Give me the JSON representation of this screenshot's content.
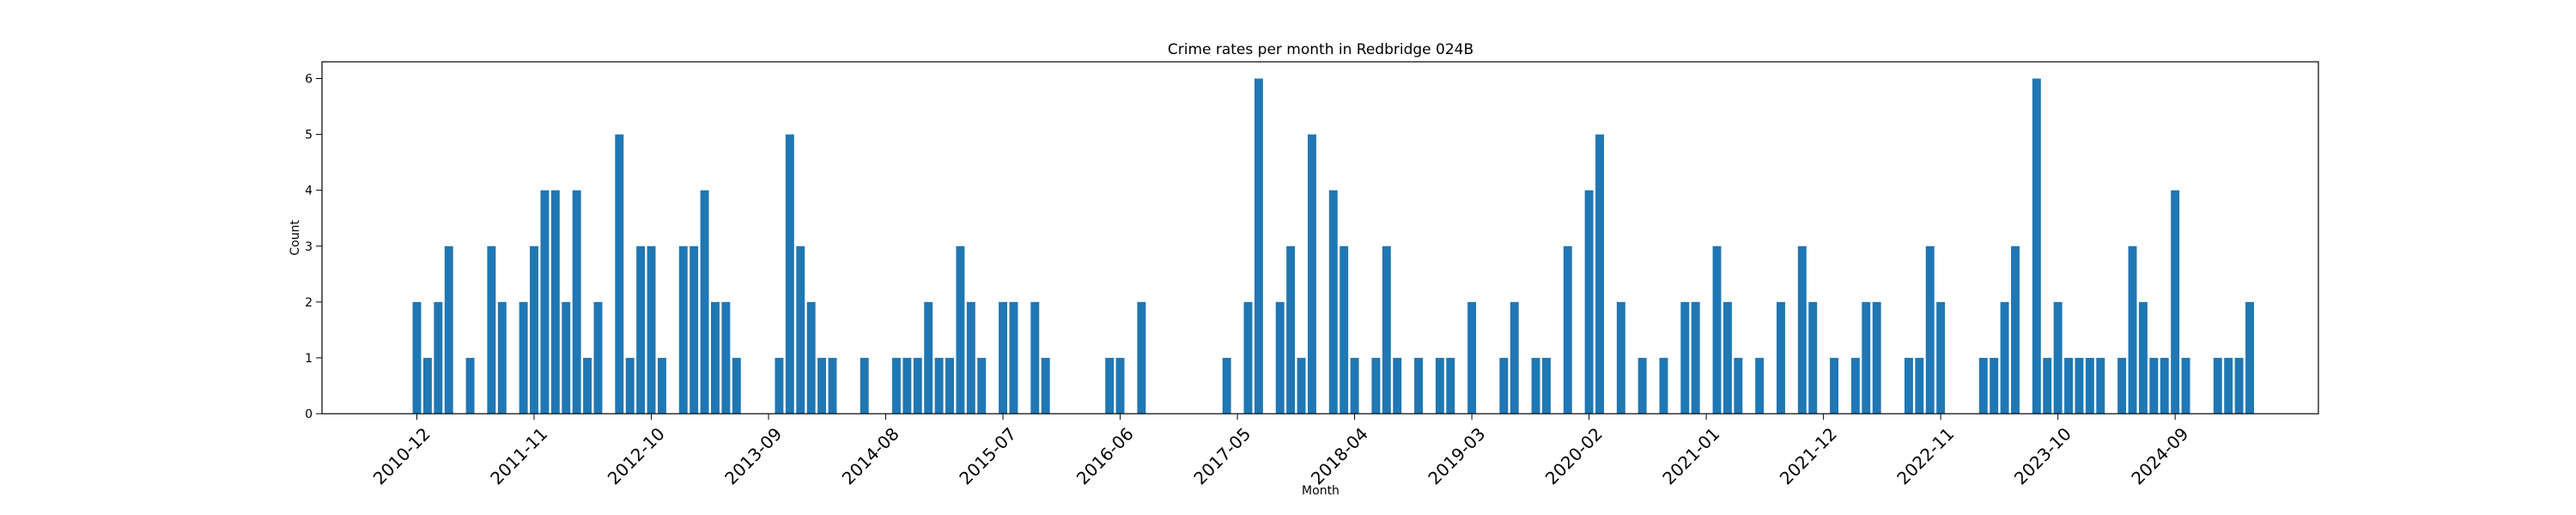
{
  "chart_data": {
    "type": "bar",
    "title": "Crime rates per month in Redbridge 024B",
    "xlabel": "Month",
    "ylabel": "Count",
    "ylim": [
      0,
      6.3
    ],
    "yticks": [
      0,
      1,
      2,
      3,
      4,
      5,
      6
    ],
    "start_month": "2010-12",
    "xtick_labels": [
      "2010-12",
      "2011-11",
      "2012-10",
      "2013-09",
      "2014-08",
      "2015-07",
      "2016-06",
      "2017-05",
      "2018-04",
      "2019-03",
      "2020-02",
      "2021-01",
      "2021-12",
      "2022-11",
      "2023-10",
      "2024-09"
    ],
    "bar_color": "#1f77b4",
    "grid": false,
    "series": [
      {
        "values": [
          2,
          1,
          2,
          3,
          0,
          1,
          0,
          3,
          2,
          0,
          2,
          3,
          4,
          4,
          2,
          4,
          1,
          2,
          0,
          5,
          1,
          3,
          3,
          1,
          0,
          3,
          3,
          4,
          2,
          2,
          1,
          0,
          0,
          0,
          1,
          5,
          3,
          2,
          1,
          1,
          0,
          0,
          1,
          0,
          0,
          1,
          1,
          1,
          2,
          1,
          1,
          3,
          2,
          1,
          0,
          2,
          2,
          0,
          2,
          1,
          0,
          0,
          0,
          0,
          0,
          1,
          1,
          0,
          2,
          0,
          0,
          0,
          0,
          0,
          0,
          0,
          1,
          0,
          2,
          6,
          0,
          2,
          3,
          1,
          5,
          0,
          4,
          3,
          1,
          0,
          1,
          3,
          1,
          0,
          1,
          0,
          1,
          1,
          0,
          2,
          0,
          0,
          1,
          2,
          0,
          1,
          1,
          0,
          3,
          0,
          4,
          5,
          0,
          2,
          0,
          1,
          0,
          1,
          0,
          2,
          2,
          0,
          3,
          2,
          1,
          0,
          1,
          0,
          2,
          0,
          3,
          2,
          0,
          1,
          0,
          1,
          2,
          2,
          0,
          0,
          1,
          1,
          3,
          2,
          0,
          0,
          0,
          1,
          1,
          2,
          3,
          0,
          6,
          1,
          2,
          1,
          1,
          1,
          1,
          0,
          1,
          3,
          2,
          1,
          1,
          4,
          1,
          0,
          0,
          1,
          1,
          1,
          2
        ]
      }
    ]
  }
}
